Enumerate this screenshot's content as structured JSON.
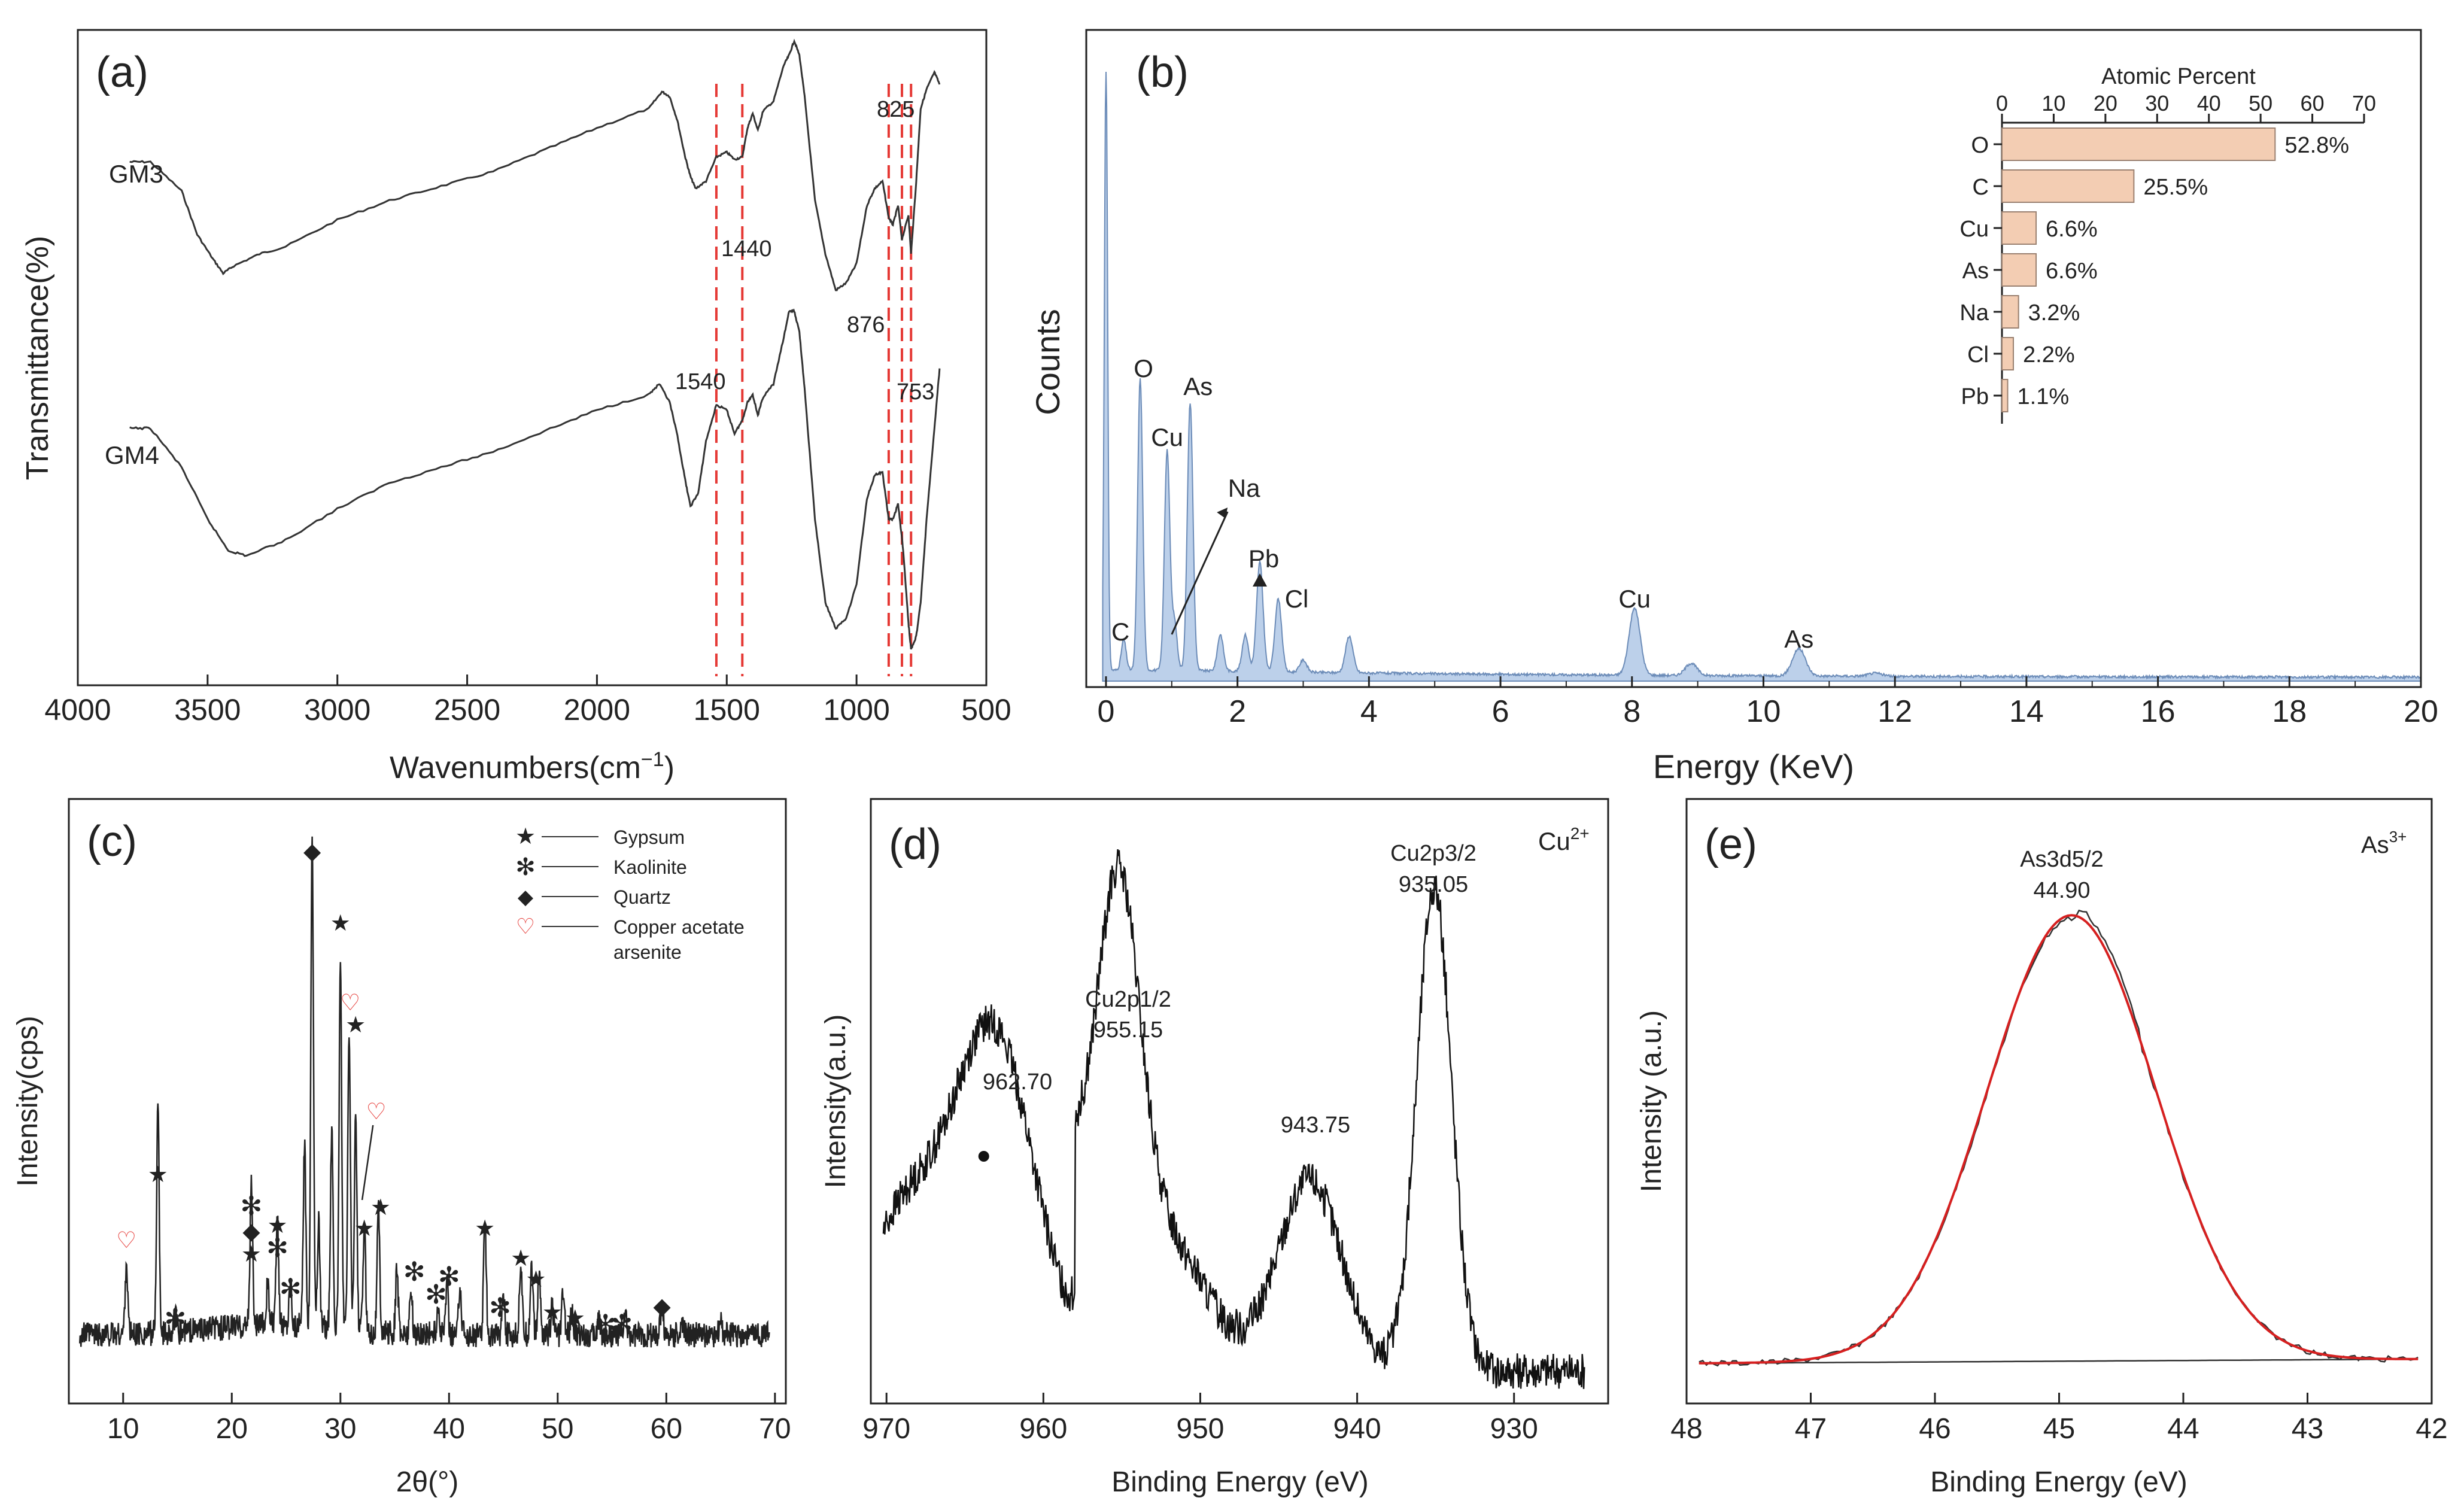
{
  "chart_data": [
    {
      "panel": "(a)",
      "type": "line",
      "xlabel": "Wavenumbers(cm⁻¹)",
      "ylabel": "Transmittance(%)",
      "xlim": [
        4000,
        500
      ],
      "x_reversed": true,
      "xticks": [
        4000,
        3500,
        3000,
        2500,
        2000,
        1500,
        1000,
        500
      ],
      "series": [
        {
          "name": "GM3",
          "x": [
            3800,
            3720,
            3600,
            3540,
            3480,
            3440,
            3400,
            3300,
            3200,
            3000,
            2800,
            2600,
            2400,
            2200,
            2000,
            1800,
            1750,
            1720,
            1690,
            1660,
            1640,
            1620,
            1580,
            1540,
            1500,
            1470,
            1440,
            1420,
            1400,
            1380,
            1360,
            1320,
            1280,
            1260,
            1240,
            1220,
            1200,
            1160,
            1120,
            1080,
            1040,
            1000,
            960,
            930,
            900,
            876,
            860,
            840,
            825,
            800,
            790,
            770,
            753,
            730,
            700,
            680
          ],
          "y": [
            0.22,
            0.22,
            0.34,
            0.52,
            0.62,
            0.68,
            0.65,
            0.6,
            0.57,
            0.46,
            0.38,
            0.32,
            0.26,
            0.17,
            0.08,
            0.0,
            -0.07,
            -0.05,
            0.05,
            0.2,
            0.28,
            0.33,
            0.3,
            0.2,
            0.18,
            0.21,
            0.2,
            0.08,
            0.02,
            0.09,
            0.01,
            -0.03,
            -0.18,
            -0.22,
            -0.28,
            -0.22,
            -0.05,
            0.38,
            0.6,
            0.75,
            0.72,
            0.64,
            0.4,
            0.33,
            0.3,
            0.45,
            0.48,
            0.4,
            0.54,
            0.44,
            0.6,
            0.3,
            0.0,
            -0.08,
            -0.15,
            -0.1
          ]
        },
        {
          "name": "GM4",
          "x": [
            3800,
            3720,
            3600,
            3500,
            3420,
            3350,
            3200,
            3000,
            2800,
            2600,
            2400,
            2200,
            2000,
            1800,
            1760,
            1720,
            1690,
            1660,
            1640,
            1610,
            1580,
            1540,
            1500,
            1470,
            1440,
            1420,
            1400,
            1380,
            1360,
            1320,
            1280,
            1260,
            1240,
            1220,
            1200,
            1160,
            1120,
            1080,
            1040,
            1000,
            960,
            930,
            900,
            876,
            860,
            840,
            820,
            800,
            790,
            770,
            753,
            730,
            700,
            680
          ],
          "y": [
            0.15,
            0.15,
            0.3,
            0.5,
            0.62,
            0.64,
            0.58,
            0.46,
            0.36,
            0.3,
            0.24,
            0.16,
            0.08,
            0.02,
            -0.02,
            0.05,
            0.18,
            0.35,
            0.45,
            0.4,
            0.2,
            0.06,
            0.08,
            0.17,
            0.12,
            0.05,
            0.02,
            0.1,
            0.03,
            -0.02,
            -0.2,
            -0.3,
            -0.3,
            -0.22,
            0.0,
            0.5,
            0.82,
            0.92,
            0.88,
            0.75,
            0.42,
            0.33,
            0.32,
            0.5,
            0.5,
            0.44,
            0.62,
            0.9,
            1.0,
            0.95,
            0.82,
            0.5,
            0.15,
            -0.08
          ]
        }
      ],
      "reference_lines": [
        1540,
        1440,
        876,
        825,
        790
      ],
      "annotations": [
        "1440",
        "1540",
        "876",
        "825",
        "753"
      ]
    },
    {
      "panel": "(b)",
      "type": "area",
      "xlabel": "Energy (KeV)",
      "ylabel": "Counts",
      "xlim": [
        -0.3,
        20
      ],
      "xticks": [
        0,
        2,
        4,
        6,
        8,
        10,
        12,
        14,
        16,
        18,
        20
      ],
      "peaks": [
        {
          "label": "C",
          "energy": 0.27
        },
        {
          "label": "O",
          "energy": 0.52
        },
        {
          "label": "Cu",
          "energy": 0.93
        },
        {
          "label": "Na",
          "energy": 1.04
        },
        {
          "label": "As",
          "energy": 1.28
        },
        {
          "label": "Pb",
          "energy": 2.34
        },
        {
          "label": "Cl",
          "energy": 2.62
        },
        {
          "label": "Cu",
          "energy": 8.04
        },
        {
          "label": "As",
          "energy": 10.54
        }
      ],
      "spectrum": {
        "peaks_rel": [
          [
            0.0,
            1.0
          ],
          [
            0.27,
            0.05
          ],
          [
            0.52,
            0.48
          ],
          [
            0.93,
            0.36
          ],
          [
            1.04,
            0.08
          ],
          [
            1.28,
            0.44
          ],
          [
            1.74,
            0.06
          ],
          [
            2.12,
            0.06
          ],
          [
            2.34,
            0.18
          ],
          [
            2.62,
            0.12
          ],
          [
            3.0,
            0.02
          ],
          [
            3.7,
            0.06
          ],
          [
            8.04,
            0.11
          ],
          [
            8.9,
            0.02
          ],
          [
            10.54,
            0.045
          ],
          [
            11.7,
            0.005
          ]
        ]
      },
      "inset": {
        "type": "bar",
        "orientation": "horizontal",
        "title": "Atomic Percent",
        "xlim": [
          0,
          70
        ],
        "xticks": [
          0,
          10,
          20,
          30,
          40,
          50,
          60,
          70
        ],
        "categories": [
          "O",
          "C",
          "Cu",
          "As",
          "Na",
          "Cl",
          "Pb"
        ],
        "values": [
          52.8,
          25.5,
          6.6,
          6.6,
          3.2,
          2.2,
          1.1
        ],
        "value_labels": [
          "52.8%",
          "25.5%",
          "6.6%",
          "6.6%",
          "3.2%",
          "2.2%",
          "1.1%"
        ],
        "color": "#f3cdb3"
      }
    },
    {
      "panel": "(c)",
      "type": "line",
      "xlabel": "2θ(°)",
      "ylabel": "Intensity(cps)",
      "xlim": [
        5,
        71
      ],
      "xticks": [
        10,
        20,
        30,
        40,
        50,
        60,
        70
      ],
      "legend": {
        "position": "top-right",
        "entries": [
          {
            "symbol": "★",
            "label": "Gypsum"
          },
          {
            "symbol": "✻",
            "label": "Kaolinite"
          },
          {
            "symbol": "◆",
            "label": "Quartz"
          },
          {
            "symbol": "♡",
            "label": "Copper acetate arsenite"
          }
        ]
      },
      "peaks": [
        [
          10.3,
          0.14
        ],
        [
          13.2,
          0.44
        ],
        [
          14.8,
          0.03
        ],
        [
          21.8,
          0.28
        ],
        [
          23.3,
          0.08
        ],
        [
          24.2,
          0.2
        ],
        [
          25.4,
          0.09
        ],
        [
          26.7,
          0.35
        ],
        [
          27.4,
          0.96
        ],
        [
          28.0,
          0.2
        ],
        [
          29.2,
          0.38
        ],
        [
          30.0,
          0.7
        ],
        [
          30.8,
          0.58
        ],
        [
          31.4,
          0.42
        ],
        [
          32.2,
          0.2
        ],
        [
          33.5,
          0.24
        ],
        [
          35.2,
          0.12
        ],
        [
          36.5,
          0.08
        ],
        [
          39.0,
          0.05
        ],
        [
          39.8,
          0.1
        ],
        [
          41.0,
          0.1
        ],
        [
          43.3,
          0.22
        ],
        [
          45.0,
          0.09
        ],
        [
          46.6,
          0.14
        ],
        [
          47.6,
          0.14
        ],
        [
          48.3,
          0.12
        ],
        [
          49.5,
          0.06
        ],
        [
          50.5,
          0.08
        ],
        [
          51.3,
          0.04
        ],
        [
          53.8,
          0.04
        ],
        [
          56.2,
          0.04
        ],
        [
          59.6,
          0.06
        ],
        [
          61.5,
          0.02
        ],
        [
          65.0,
          0.02
        ]
      ],
      "markers": [
        {
          "symbol": "♡",
          "x": 10.3
        },
        {
          "symbol": "★",
          "x": 13.2
        },
        {
          "symbol": "✻",
          "x": 14.8
        },
        {
          "symbol": "✻",
          "x": 21.8
        },
        {
          "symbol": "◆",
          "x": 21.8
        },
        {
          "symbol": "★",
          "x": 21.8
        },
        {
          "symbol": "★",
          "x": 24.2
        },
        {
          "symbol": "✻",
          "x": 24.2
        },
        {
          "symbol": "✻",
          "x": 25.4
        },
        {
          "symbol": "◆",
          "x": 27.4
        },
        {
          "symbol": "★",
          "x": 30.0
        },
        {
          "symbol": "♡",
          "x": 30.9
        },
        {
          "symbol": "★",
          "x": 31.4
        },
        {
          "symbol": "♡",
          "x": 33.3
        },
        {
          "symbol": "★",
          "x": 32.2
        },
        {
          "symbol": "★",
          "x": 33.7
        },
        {
          "symbol": "✻",
          "x": 36.8
        },
        {
          "symbol": "✻",
          "x": 38.8
        },
        {
          "symbol": "✻",
          "x": 40.0
        },
        {
          "symbol": "★",
          "x": 43.3
        },
        {
          "symbol": "✻",
          "x": 44.7
        },
        {
          "symbol": "★",
          "x": 46.6
        },
        {
          "symbol": "★",
          "x": 48.0
        },
        {
          "symbol": "★",
          "x": 49.5
        },
        {
          "symbol": "★",
          "x": 51.6
        },
        {
          "symbol": "✻",
          "x": 54.4
        },
        {
          "symbol": "✻",
          "x": 55.9
        },
        {
          "symbol": "◆",
          "x": 59.6
        }
      ]
    },
    {
      "panel": "(d)",
      "type": "line",
      "xlabel": "Binding Energy (eV)",
      "ylabel": "Intensity(a.u.)",
      "xlim": [
        971,
        924
      ],
      "x_reversed": true,
      "xticks": [
        970,
        960,
        950,
        940,
        930
      ],
      "corner_label": "Cu",
      "corner_label_sup": "2+",
      "peaks": [
        {
          "name": "962.70",
          "be": 962.7,
          "height": 0.58
        },
        {
          "name": "Cu2p1/2 955.15",
          "be": 955.15,
          "height": 0.72
        },
        {
          "name": "943.75",
          "be": 943.75,
          "height": 0.5
        },
        {
          "name": "Cu2p3/2 935.05",
          "be": 935.05,
          "height": 1.0
        }
      ],
      "annotations": [
        "962.70",
        "Cu2p1/2",
        "955.15",
        "943.75",
        "Cu2p3/2",
        "935.05"
      ]
    },
    {
      "panel": "(e)",
      "type": "line",
      "xlabel": "Binding Energy (eV)",
      "ylabel": "Intensity (a.u.)",
      "xlim": [
        48,
        42
      ],
      "x_reversed": true,
      "xticks": [
        48,
        47,
        46,
        45,
        44,
        43,
        42
      ],
      "corner_label": "As",
      "corner_label_sup": "3+",
      "fit": {
        "center": 44.9,
        "fwhm": 1.7,
        "color": "#d62020"
      },
      "annotations": [
        "As3d5/2",
        "44.90"
      ]
    }
  ],
  "labels": {
    "a": {
      "panel": "(a)",
      "xlabel": "Wavenumbers(cm",
      "xlabel_sup": "−1",
      "xlabel_end": ")",
      "ylabel": "Transmittance(%)",
      "gm3": "GM3",
      "gm4": "GM4",
      "n1440": "1440",
      "n1540": "1540",
      "n876": "876",
      "n825": "825",
      "n753": "753"
    },
    "b": {
      "panel": "(b)",
      "xlabel": "Energy (KeV)",
      "ylabel": "Counts",
      "inset_title": "Atomic Percent"
    },
    "c": {
      "panel": "(c)",
      "xlabel": "2θ(°)",
      "ylabel": "Intensity(cps)",
      "legend_gypsum": "Gypsum",
      "legend_kaolinite": "Kaolinite",
      "legend_quartz": "Quartz",
      "legend_caa1": "Copper acetate",
      "legend_caa2": "arsenite"
    },
    "d": {
      "panel": "(d)",
      "xlabel": "Binding Energy (eV)",
      "ylabel": "Intensity(a.u.)",
      "corner": "Cu",
      "corner_sup": "2+",
      "p1": "962.70",
      "p2a": "Cu2p1/2",
      "p2b": "955.15",
      "p3": "943.75",
      "p4a": "Cu2p3/2",
      "p4b": "935.05"
    },
    "e": {
      "panel": "(e)",
      "xlabel": "Binding Energy (eV)",
      "ylabel": "Intensity (a.u.)",
      "corner": "As",
      "corner_sup": "3+",
      "pa": "As3d5/2",
      "pb": "44.90"
    }
  },
  "colors": {
    "line": "#333333",
    "ref": "#e53935",
    "eds_fill": "#bcd0ea",
    "eds_line": "#6c8cb8",
    "inset_bar": "#f3cdb3",
    "fit": "#d62020"
  }
}
